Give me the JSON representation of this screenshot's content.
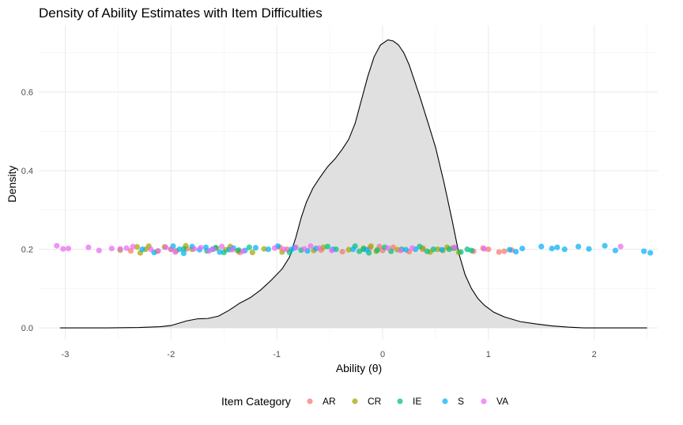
{
  "chart_data": {
    "type": "area",
    "title": "Density of Ability Estimates with Item Difficulties",
    "xlabel": "Ability (θ)",
    "ylabel": "Density",
    "xlim": [
      -3.25,
      2.6
    ],
    "ylim": [
      -0.03,
      0.77
    ],
    "x_ticks": [
      -3,
      -2,
      -1,
      0,
      1,
      2
    ],
    "y_ticks": [
      0.0,
      0.2,
      0.4,
      0.6
    ],
    "grid": true,
    "legend_position": "bottom",
    "legend_title": "Item Category",
    "density": {
      "fill": "#e0e0e0",
      "stroke": "#000000",
      "x": [
        -3.05,
        -2.6,
        -2.3,
        -2.1,
        -2.0,
        -1.95,
        -1.85,
        -1.75,
        -1.65,
        -1.55,
        -1.45,
        -1.35,
        -1.25,
        -1.15,
        -1.05,
        -0.95,
        -0.88,
        -0.82,
        -0.77,
        -0.72,
        -0.66,
        -0.6,
        -0.52,
        -0.45,
        -0.38,
        -0.32,
        -0.26,
        -0.2,
        -0.14,
        -0.08,
        -0.02,
        0.05,
        0.1,
        0.15,
        0.2,
        0.25,
        0.3,
        0.35,
        0.42,
        0.5,
        0.58,
        0.66,
        0.72,
        0.78,
        0.84,
        0.9,
        0.96,
        1.05,
        1.15,
        1.3,
        1.45,
        1.6,
        1.75,
        1.9,
        2.2,
        2.5
      ],
      "y": [
        0.0,
        0.0,
        0.001,
        0.003,
        0.006,
        0.01,
        0.018,
        0.023,
        0.024,
        0.03,
        0.045,
        0.063,
        0.077,
        0.097,
        0.122,
        0.15,
        0.18,
        0.23,
        0.28,
        0.32,
        0.355,
        0.38,
        0.41,
        0.43,
        0.455,
        0.48,
        0.52,
        0.58,
        0.64,
        0.69,
        0.72,
        0.733,
        0.73,
        0.72,
        0.7,
        0.67,
        0.63,
        0.59,
        0.53,
        0.46,
        0.37,
        0.27,
        0.19,
        0.135,
        0.1,
        0.075,
        0.058,
        0.04,
        0.028,
        0.016,
        0.01,
        0.005,
        0.002,
        0.0,
        0.0,
        0.0
      ]
    },
    "series": [
      {
        "name": "AR",
        "color": "#F8766D",
        "x": [
          -2.38,
          -1.85,
          -1.35,
          -0.97,
          -0.9,
          -0.58,
          -0.38,
          -0.12,
          -0.03,
          0.0,
          0.1,
          0.25,
          0.38,
          0.66,
          0.86,
          0.95,
          1.0,
          1.1,
          1.15,
          1.22
        ],
        "y": [
          0.196,
          0.201,
          0.192,
          0.205,
          0.2,
          0.198,
          0.194,
          0.203,
          0.207,
          0.197,
          0.205,
          0.194,
          0.2,
          0.203,
          0.195,
          0.203,
          0.2,
          0.193,
          0.195,
          0.198
        ]
      },
      {
        "name": "CR",
        "color": "#A3A500",
        "x": [
          -2.48,
          -2.32,
          -2.29,
          -2.24,
          -2.21,
          -2.13,
          -2.06,
          -2.0,
          -1.95,
          -1.86,
          -1.8,
          -1.57,
          -1.48,
          -1.44,
          -1.37,
          -1.23,
          -1.12,
          -0.95,
          -0.65,
          -0.56,
          -0.32,
          -0.18,
          -0.11,
          -0.06,
          0.14,
          0.38,
          0.45,
          0.52,
          0.57,
          0.61,
          0.72
        ],
        "y": [
          0.198,
          0.206,
          0.191,
          0.2,
          0.208,
          0.195,
          0.206,
          0.2,
          0.196,
          0.209,
          0.2,
          0.203,
          0.199,
          0.207,
          0.196,
          0.192,
          0.201,
          0.193,
          0.197,
          0.205,
          0.199,
          0.203,
          0.208,
          0.195,
          0.199,
          0.203,
          0.193,
          0.2,
          0.197,
          0.205,
          0.192
        ]
      },
      {
        "name": "IE",
        "color": "#00BF7D",
        "x": [
          -1.88,
          -1.66,
          -1.58,
          -1.5,
          -1.36,
          -1.26,
          -0.88,
          -0.77,
          -0.52,
          -0.44,
          -0.26,
          -0.22,
          -0.18,
          -0.13,
          -0.05,
          0.02,
          0.08,
          0.18,
          0.35,
          0.42,
          0.48,
          0.63,
          0.68,
          0.74,
          0.8,
          0.84
        ],
        "y": [
          0.201,
          0.196,
          0.204,
          0.192,
          0.198,
          0.205,
          0.192,
          0.198,
          0.207,
          0.2,
          0.208,
          0.195,
          0.2,
          0.191,
          0.198,
          0.205,
          0.195,
          0.2,
          0.207,
          0.195,
          0.2,
          0.2,
          0.203,
          0.193,
          0.2,
          0.197
        ]
      },
      {
        "name": "S",
        "color": "#00B0F6",
        "x": [
          -2.27,
          -2.16,
          -1.98,
          -1.92,
          -1.88,
          -1.8,
          -1.73,
          -1.67,
          -1.61,
          -1.54,
          -1.45,
          -1.41,
          -1.3,
          -1.2,
          -1.08,
          -0.99,
          -0.86,
          -0.83,
          -0.71,
          -0.63,
          -0.47,
          -0.28,
          -0.15,
          0.22,
          0.31,
          0.56,
          1.2,
          1.26,
          1.32,
          1.5,
          1.6,
          1.65,
          1.72,
          1.85,
          1.95,
          2.1,
          2.2,
          2.47,
          2.53
        ],
        "y": [
          0.2,
          0.192,
          0.208,
          0.2,
          0.19,
          0.207,
          0.199,
          0.205,
          0.2,
          0.193,
          0.199,
          0.203,
          0.197,
          0.204,
          0.2,
          0.208,
          0.2,
          0.204,
          0.196,
          0.202,
          0.2,
          0.2,
          0.199,
          0.199,
          0.2,
          0.199,
          0.199,
          0.194,
          0.202,
          0.207,
          0.202,
          0.205,
          0.2,
          0.207,
          0.201,
          0.209,
          0.197,
          0.195,
          0.191
        ]
      },
      {
        "name": "VA",
        "color": "#E76BF3",
        "x": [
          -3.08,
          -3.02,
          -2.97,
          -2.78,
          -2.68,
          -2.56,
          -2.48,
          -2.42,
          -2.36,
          -2.19,
          -2.12,
          -2.05,
          -2.0,
          -1.96,
          -1.78,
          -1.72,
          -1.64,
          -1.6,
          -1.52,
          -1.42,
          -1.32,
          -1.02,
          -0.93,
          -0.82,
          -0.74,
          -0.68,
          -0.6,
          -0.48,
          0.05,
          0.17,
          0.28,
          0.68,
          0.96,
          2.25
        ],
        "y": [
          0.209,
          0.201,
          0.202,
          0.205,
          0.197,
          0.202,
          0.201,
          0.203,
          0.207,
          0.2,
          0.196,
          0.205,
          0.2,
          0.193,
          0.201,
          0.204,
          0.196,
          0.2,
          0.207,
          0.199,
          0.195,
          0.203,
          0.2,
          0.205,
          0.201,
          0.208,
          0.203,
          0.197,
          0.203,
          0.197,
          0.203,
          0.205,
          0.201,
          0.207
        ]
      }
    ]
  }
}
